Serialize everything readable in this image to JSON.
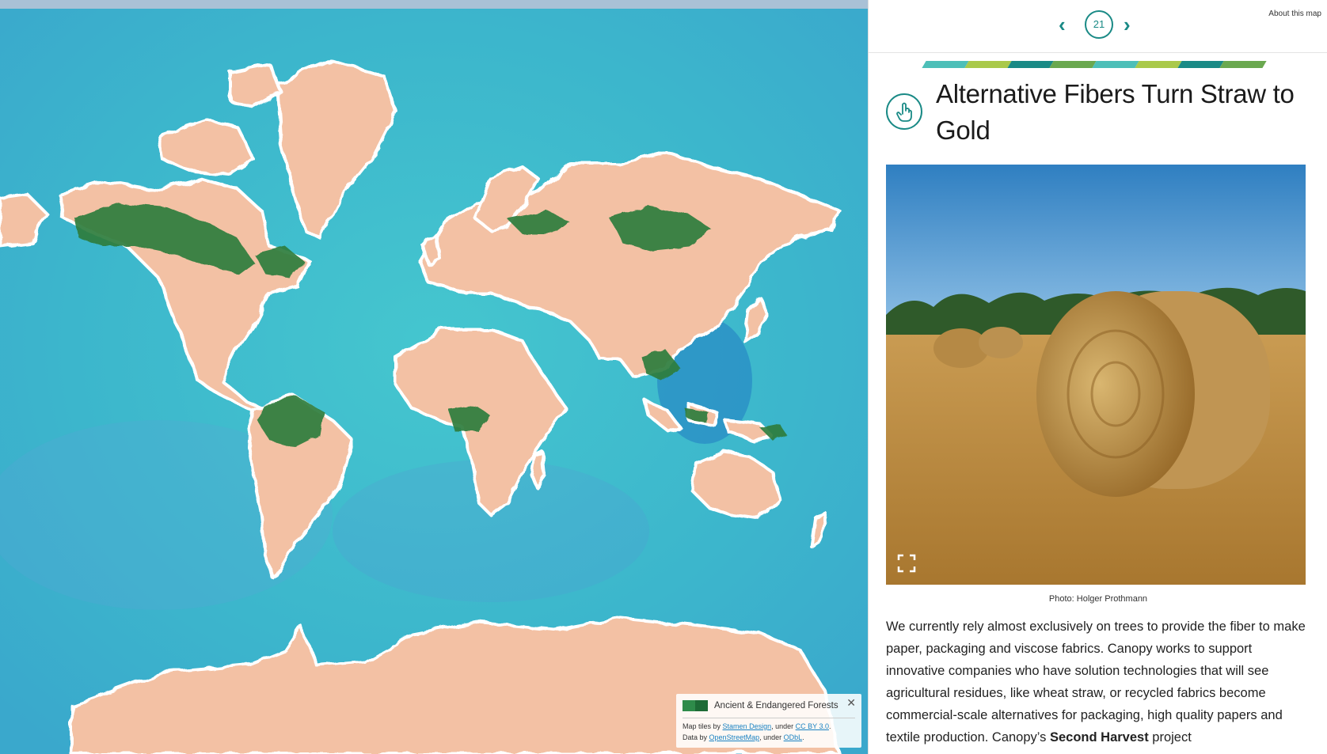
{
  "map": {
    "legend": {
      "label": "Ancient & Endangered Forests",
      "swatch_colors": [
        "#2e8b4a",
        "#1d6b36"
      ],
      "close_icon": "close-icon",
      "attribution": {
        "tiles_prefix": "Map tiles by",
        "tiles_link": "Stamen Design",
        "tiles_mid": ", under",
        "tiles_license": "CC BY 3.0",
        "tiles_end": ".",
        "data_prefix": "Data by",
        "data_link": "OpenStreetMap",
        "data_mid": ", under",
        "data_license": "ODbL",
        "data_end": "."
      }
    },
    "colors": {
      "ocean": "#3fbfcc",
      "land": "#f3c1a4",
      "forest": "#2f7d3c",
      "topbar": "#a9c1d6"
    }
  },
  "panel": {
    "nav": {
      "prev_icon": "chevron-left-icon",
      "page": "21",
      "next_icon": "chevron-right-icon",
      "about": "About this map"
    },
    "stripe_colors": [
      "#4dbfb8",
      "#a9c94a",
      "#1a8a86",
      "#6aa84f",
      "#4dbfb8",
      "#a9c94a",
      "#1a8a86",
      "#6aa84f"
    ],
    "icon": "hand-pointer-icon",
    "headline": "Alternative Fibers Turn Straw to Gold",
    "photo_caption": "Photo: Holger Prothmann",
    "body_parts": [
      "We currently rely almost exclusively on trees to provide the fiber to make paper, packaging and viscose fabrics. Canopy works to support innovative companies who have solution technologies that will see agricultural residues, like wheat straw, or recycled fabrics become commercial-scale alternatives for packaging, high quality papers and textile production. Canopy’s ",
      "Second Harvest",
      " project"
    ],
    "accent_color": "#1a8a86"
  }
}
